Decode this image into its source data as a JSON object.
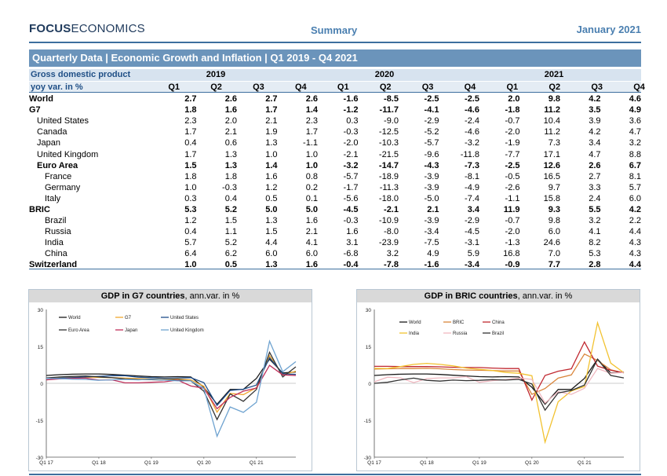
{
  "header": {
    "brand_bold": "FOCUS",
    "brand_rest": "ECONOMICS",
    "section": "Summary",
    "date": "January 2021"
  },
  "title_bar": "Quarterly Data | Economic Growth and Inflation | Q1 2019 - Q4 2021",
  "table": {
    "label_line1": "Gross domestic product",
    "label_line2": "yoy var. in %",
    "years": [
      "2019",
      "2020",
      "2021"
    ],
    "quarters": [
      "Q1",
      "Q2",
      "Q3",
      "Q4",
      "Q1",
      "Q2",
      "Q3",
      "Q4",
      "Q1",
      "Q2",
      "Q3",
      "Q4"
    ],
    "rows": [
      {
        "label": "World",
        "level": 0,
        "bold": true,
        "values": [
          "2.7",
          "2.6",
          "2.7",
          "2.6",
          "-1.6",
          "-8.5",
          "-2.5",
          "-2.5",
          "2.0",
          "9.8",
          "4.2",
          "4.6"
        ]
      },
      {
        "label": "G7",
        "level": 0,
        "bold": true,
        "values": [
          "1.8",
          "1.6",
          "1.7",
          "1.4",
          "-1.2",
          "-11.7",
          "-4.1",
          "-4.6",
          "-1.8",
          "11.2",
          "3.5",
          "4.9"
        ]
      },
      {
        "label": "United States",
        "level": 1,
        "bold": false,
        "values": [
          "2.3",
          "2.0",
          "2.1",
          "2.3",
          "0.3",
          "-9.0",
          "-2.9",
          "-2.4",
          "-0.7",
          "10.4",
          "3.9",
          "3.6"
        ]
      },
      {
        "label": "Canada",
        "level": 1,
        "bold": false,
        "values": [
          "1.7",
          "2.1",
          "1.9",
          "1.7",
          "-0.3",
          "-12.5",
          "-5.2",
          "-4.6",
          "-2.0",
          "11.2",
          "4.2",
          "4.7"
        ]
      },
      {
        "label": "Japan",
        "level": 1,
        "bold": false,
        "values": [
          "0.4",
          "0.6",
          "1.3",
          "-1.1",
          "-2.0",
          "-10.3",
          "-5.7",
          "-3.2",
          "-1.9",
          "7.3",
          "3.4",
          "3.2"
        ]
      },
      {
        "label": "United Kingdom",
        "level": 1,
        "bold": false,
        "values": [
          "1.7",
          "1.3",
          "1.0",
          "1.0",
          "-2.1",
          "-21.5",
          "-9.6",
          "-11.8",
          "-7.7",
          "17.1",
          "4.7",
          "8.8"
        ]
      },
      {
        "label": "Euro Area",
        "level": 1,
        "bold": true,
        "values": [
          "1.5",
          "1.3",
          "1.4",
          "1.0",
          "-3.2",
          "-14.7",
          "-4.3",
          "-7.3",
          "-2.5",
          "12.6",
          "2.6",
          "6.7"
        ]
      },
      {
        "label": "France",
        "level": 2,
        "bold": false,
        "values": [
          "1.8",
          "1.8",
          "1.6",
          "0.8",
          "-5.7",
          "-18.9",
          "-3.9",
          "-8.1",
          "-0.5",
          "16.5",
          "2.7",
          "8.1"
        ]
      },
      {
        "label": "Germany",
        "level": 2,
        "bold": false,
        "values": [
          "1.0",
          "-0.3",
          "1.2",
          "0.2",
          "-1.7",
          "-11.3",
          "-3.9",
          "-4.9",
          "-2.6",
          "9.7",
          "3.3",
          "5.7"
        ]
      },
      {
        "label": "Italy",
        "level": 2,
        "bold": false,
        "values": [
          "0.3",
          "0.4",
          "0.5",
          "0.1",
          "-5.6",
          "-18.0",
          "-5.0",
          "-7.4",
          "-1.1",
          "15.8",
          "2.4",
          "6.0"
        ]
      },
      {
        "label": "BRIC",
        "level": 0,
        "bold": true,
        "values": [
          "5.3",
          "5.2",
          "5.0",
          "5.0",
          "-4.5",
          "-2.1",
          "2.1",
          "3.4",
          "11.9",
          "9.3",
          "5.5",
          "4.2"
        ]
      },
      {
        "label": "Brazil",
        "level": 2,
        "bold": false,
        "values": [
          "1.2",
          "1.5",
          "1.3",
          "1.6",
          "-0.3",
          "-10.9",
          "-3.9",
          "-2.9",
          "-0.7",
          "9.8",
          "3.2",
          "2.2"
        ]
      },
      {
        "label": "Russia",
        "level": 2,
        "bold": false,
        "values": [
          "0.4",
          "1.1",
          "1.5",
          "2.1",
          "1.6",
          "-8.0",
          "-3.4",
          "-4.5",
          "-2.0",
          "6.0",
          "4.1",
          "4.4"
        ]
      },
      {
        "label": "India",
        "level": 2,
        "bold": false,
        "values": [
          "5.7",
          "5.2",
          "4.4",
          "4.1",
          "3.1",
          "-23.9",
          "-7.5",
          "-3.1",
          "-1.3",
          "24.6",
          "8.2",
          "4.3"
        ]
      },
      {
        "label": "China",
        "level": 2,
        "bold": false,
        "values": [
          "6.4",
          "6.2",
          "6.0",
          "6.0",
          "-6.8",
          "3.2",
          "4.9",
          "5.9",
          "16.8",
          "7.0",
          "5.3",
          "4.3"
        ]
      },
      {
        "label": "Switzerland",
        "level": 0,
        "bold": true,
        "values": [
          "1.0",
          "0.5",
          "1.3",
          "1.6",
          "-0.4",
          "-7.8",
          "-1.6",
          "-3.4",
          "-0.9",
          "7.7",
          "2.8",
          "4.4"
        ]
      }
    ]
  },
  "chart_data": [
    {
      "type": "line",
      "title_bold": "GDP in G7 countries",
      "title_rest": ", ann.var. in %",
      "x": [
        "Q1 17",
        "Q2 17",
        "Q3 17",
        "Q4 17",
        "Q1 18",
        "Q2 18",
        "Q3 18",
        "Q4 18",
        "Q1 19",
        "Q2 19",
        "Q3 19",
        "Q4 19",
        "Q1 20",
        "Q2 20",
        "Q3 20",
        "Q4 20",
        "Q1 21",
        "Q2 21",
        "Q3 21",
        "Q4 21"
      ],
      "x_tick_labels": [
        "Q1 17",
        "Q1 18",
        "Q1 19",
        "Q1 20",
        "Q1 21"
      ],
      "ylim": [
        -30,
        30
      ],
      "yticks": [
        "30",
        "15",
        "0",
        "-15",
        "-30"
      ],
      "legend_position": "top-left",
      "series": [
        {
          "name": "World",
          "color": "#1a1a1a",
          "values": [
            3.2,
            3.5,
            3.7,
            3.8,
            3.8,
            3.6,
            3.3,
            3.0,
            2.7,
            2.6,
            2.7,
            2.6,
            -1.6,
            -8.5,
            -2.5,
            -2.5,
            2.0,
            9.8,
            4.2,
            4.6
          ]
        },
        {
          "name": "G7",
          "color": "#f0a830",
          "values": [
            2.0,
            2.2,
            2.4,
            2.5,
            2.4,
            2.3,
            2.1,
            1.9,
            1.8,
            1.6,
            1.7,
            1.4,
            -1.2,
            -11.7,
            -4.1,
            -4.6,
            -1.8,
            11.2,
            3.5,
            4.9
          ]
        },
        {
          "name": "United States",
          "color": "#1f4e8c",
          "values": [
            1.9,
            2.1,
            2.3,
            2.6,
            2.8,
            3.1,
            3.1,
            2.5,
            2.3,
            2.0,
            2.1,
            2.3,
            0.3,
            -9.0,
            -2.9,
            -2.4,
            -0.7,
            10.4,
            3.9,
            3.6
          ]
        },
        {
          "name": "Euro Area",
          "color": "#333333",
          "values": [
            2.2,
            2.6,
            2.8,
            3.0,
            2.6,
            2.3,
            1.8,
            1.5,
            1.5,
            1.3,
            1.4,
            1.0,
            -3.2,
            -14.7,
            -4.3,
            -7.3,
            -2.5,
            12.6,
            2.6,
            6.7
          ]
        },
        {
          "name": "Japan",
          "color": "#c0305a",
          "values": [
            1.4,
            1.8,
            2.0,
            2.1,
            1.3,
            1.4,
            0.2,
            0.2,
            0.4,
            0.6,
            1.3,
            -1.1,
            -2.0,
            -10.3,
            -5.7,
            -3.2,
            -1.9,
            7.3,
            3.4,
            3.2
          ]
        },
        {
          "name": "United Kingdom",
          "color": "#6fa3d0",
          "values": [
            2.0,
            1.9,
            1.7,
            1.6,
            1.2,
            1.4,
            1.6,
            1.4,
            1.7,
            1.3,
            1.0,
            1.0,
            -2.1,
            -21.5,
            -9.6,
            -11.8,
            -7.7,
            17.1,
            4.7,
            8.8
          ]
        }
      ]
    },
    {
      "type": "line",
      "title_bold": "GDP in BRIC countries",
      "title_rest": ", ann.var. in %",
      "x": [
        "Q1 17",
        "Q2 17",
        "Q3 17",
        "Q4 17",
        "Q1 18",
        "Q2 18",
        "Q3 18",
        "Q4 18",
        "Q1 19",
        "Q2 19",
        "Q3 19",
        "Q4 19",
        "Q1 20",
        "Q2 20",
        "Q3 20",
        "Q4 20",
        "Q1 21",
        "Q2 21",
        "Q3 21",
        "Q4 21"
      ],
      "x_tick_labels": [
        "Q1 17",
        "Q1 18",
        "Q1 19",
        "Q1 20",
        "Q1 21"
      ],
      "ylim": [
        -30,
        30
      ],
      "yticks": [
        "30",
        "15",
        "0",
        "-15",
        "-30"
      ],
      "legend_position": "top-left",
      "series": [
        {
          "name": "World",
          "color": "#1a1a1a",
          "values": [
            3.2,
            3.5,
            3.7,
            3.8,
            3.8,
            3.6,
            3.3,
            3.0,
            2.7,
            2.6,
            2.7,
            2.6,
            -1.6,
            -8.5,
            -2.5,
            -2.5,
            2.0,
            9.8,
            4.2,
            4.6
          ]
        },
        {
          "name": "BRIC",
          "color": "#d9853b",
          "values": [
            5.8,
            5.9,
            6.0,
            6.0,
            6.1,
            5.9,
            5.6,
            5.4,
            5.3,
            5.2,
            5.0,
            5.0,
            -4.5,
            -2.1,
            2.1,
            3.4,
            11.9,
            9.3,
            5.5,
            4.2
          ]
        },
        {
          "name": "China",
          "color": "#c02830",
          "values": [
            6.9,
            6.9,
            6.8,
            6.8,
            6.8,
            6.7,
            6.5,
            6.4,
            6.4,
            6.2,
            6.0,
            6.0,
            -6.8,
            3.2,
            4.9,
            5.9,
            16.8,
            7.0,
            5.3,
            4.3
          ]
        },
        {
          "name": "India",
          "color": "#f2c230",
          "values": [
            6.1,
            6.0,
            6.8,
            7.7,
            8.1,
            7.7,
            7.1,
            6.2,
            5.7,
            5.2,
            4.4,
            4.1,
            3.1,
            -23.9,
            -7.5,
            -3.1,
            -1.3,
            24.6,
            8.2,
            4.3
          ]
        },
        {
          "name": "Russia",
          "color": "#f0b8c0",
          "values": [
            0.6,
            2.5,
            2.2,
            0.3,
            1.9,
            2.2,
            2.2,
            2.7,
            0.4,
            1.1,
            1.5,
            2.1,
            1.6,
            -8.0,
            -3.4,
            -4.5,
            -2.0,
            6.0,
            4.1,
            4.4
          ]
        },
        {
          "name": "Brazil",
          "color": "#333333",
          "values": [
            0.0,
            0.4,
            1.4,
            2.1,
            1.2,
            0.9,
            1.3,
            1.1,
            1.2,
            1.5,
            1.3,
            1.6,
            -0.3,
            -10.9,
            -3.9,
            -2.9,
            -0.7,
            9.8,
            3.2,
            2.2
          ]
        }
      ]
    }
  ]
}
